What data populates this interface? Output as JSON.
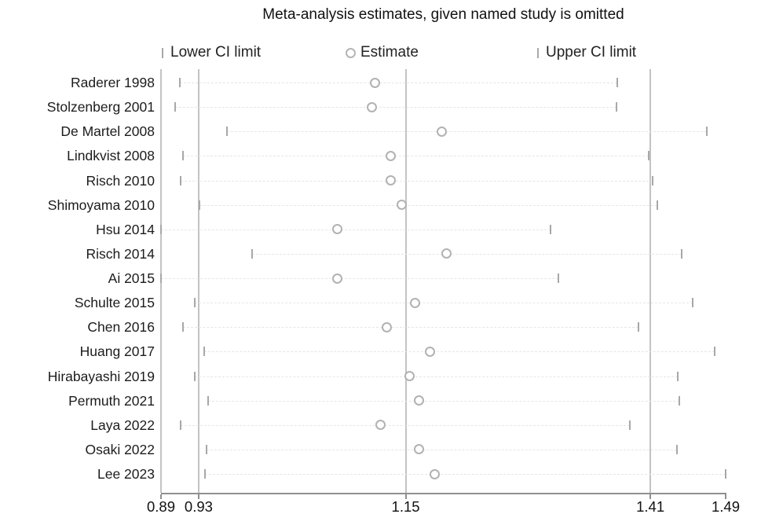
{
  "title": "Meta-analysis estimates, given named study is omitted",
  "legend": {
    "lower_label": "Lower CI limit",
    "estimate_label": "Estimate",
    "upper_label": "Upper CI limit"
  },
  "colors": {
    "background": "#ffffff",
    "text": "#1c1c1c",
    "grid_line": "#c3c3c3",
    "axis_line": "#909090",
    "ci_marker": "#a8a8a8",
    "estimate_ring": "#b2b2b2",
    "row_dash": "#e6e6e6"
  },
  "chart_data": {
    "type": "scatter",
    "subtype": "leave-one-out-sensitivity-forest",
    "title": "Meta-analysis estimates, given named study is omitted",
    "xlabel": "",
    "ylabel": "",
    "xlim": [
      0.89,
      1.49
    ],
    "x_ticks": [
      0.89,
      0.93,
      1.15,
      1.41,
      1.49
    ],
    "x_tick_labels": [
      "0.89",
      "0.93",
      "1.15",
      "1.41",
      "1.49"
    ],
    "reference_lines": [
      0.93,
      1.15,
      1.41
    ],
    "grid": "vertical-reference-lines-only",
    "legend_position": "top",
    "legend": [
      "Lower CI limit",
      "Estimate",
      "Upper CI limit"
    ],
    "studies": [
      {
        "label": "Raderer 1998",
        "lower": 0.91,
        "estimate": 1.117,
        "upper": 1.375
      },
      {
        "label": "Stolzenberg 2001",
        "lower": 0.905,
        "estimate": 1.114,
        "upper": 1.374
      },
      {
        "label": "De Martel 2008",
        "lower": 0.96,
        "estimate": 1.188,
        "upper": 1.47
      },
      {
        "label": "Lindkvist 2008",
        "lower": 0.913,
        "estimate": 1.134,
        "upper": 1.408
      },
      {
        "label": "Risch 2010",
        "lower": 0.911,
        "estimate": 1.134,
        "upper": 1.412
      },
      {
        "label": "Shimoyama 2010",
        "lower": 0.931,
        "estimate": 1.146,
        "upper": 1.417
      },
      {
        "label": "Hsu 2014",
        "lower": 0.89,
        "estimate": 1.077,
        "upper": 1.304
      },
      {
        "label": "Risch 2014",
        "lower": 0.987,
        "estimate": 1.193,
        "upper": 1.443
      },
      {
        "label": "Ai 2015",
        "lower": 0.89,
        "estimate": 1.077,
        "upper": 1.312
      },
      {
        "label": "Schulte 2015",
        "lower": 0.926,
        "estimate": 1.16,
        "upper": 1.455
      },
      {
        "label": "Chen 2016",
        "lower": 0.913,
        "estimate": 1.13,
        "upper": 1.397
      },
      {
        "label": "Huang 2017",
        "lower": 0.936,
        "estimate": 1.176,
        "upper": 1.478
      },
      {
        "label": "Hirabayashi 2019",
        "lower": 0.926,
        "estimate": 1.154,
        "upper": 1.439
      },
      {
        "label": "Permuth 2021",
        "lower": 0.94,
        "estimate": 1.164,
        "upper": 1.441
      },
      {
        "label": "Laya 2022",
        "lower": 0.911,
        "estimate": 1.123,
        "upper": 1.388
      },
      {
        "label": "Osaki 2022",
        "lower": 0.938,
        "estimate": 1.164,
        "upper": 1.438
      },
      {
        "label": "Lee 2023",
        "lower": 0.937,
        "estimate": 1.181,
        "upper": 1.49
      }
    ]
  }
}
